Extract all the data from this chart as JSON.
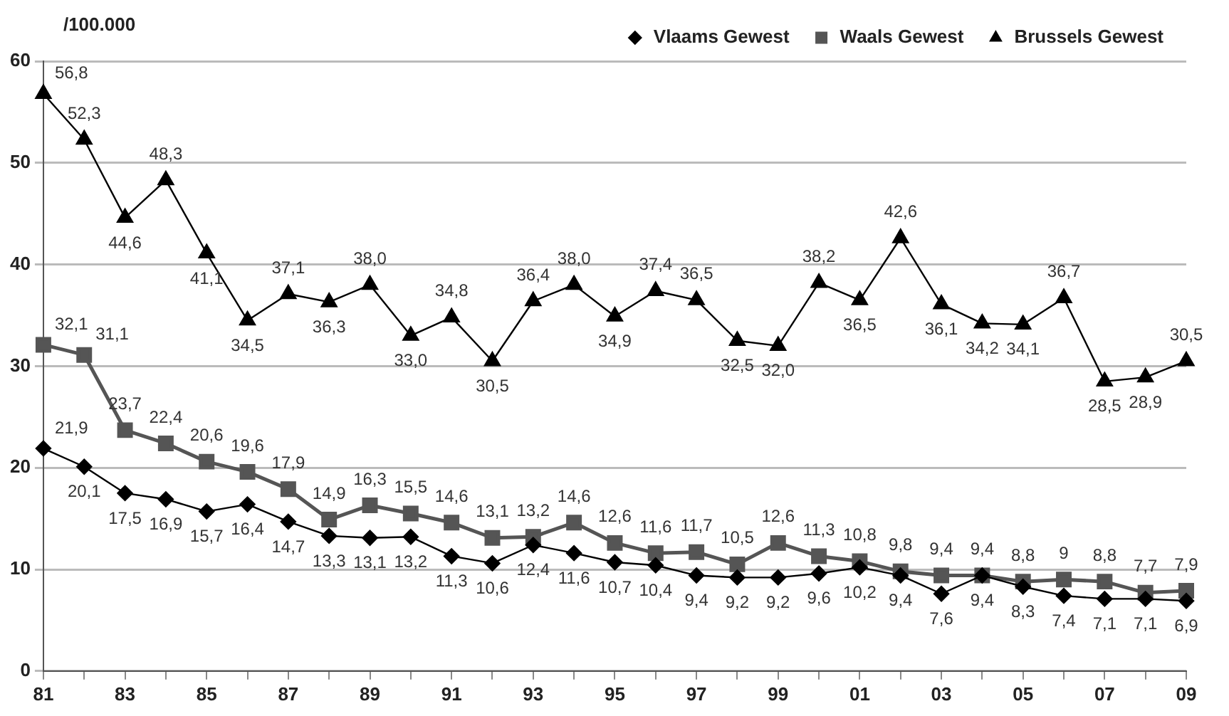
{
  "chart_data": {
    "type": "line",
    "ylabel": "/100.000",
    "categories": [
      "81",
      null,
      "83",
      null,
      "85",
      null,
      "87",
      null,
      "89",
      null,
      "91",
      null,
      "93",
      null,
      "95",
      null,
      "97",
      null,
      "99",
      null,
      "01",
      null,
      "03",
      null,
      "05",
      null,
      "07",
      null,
      "09"
    ],
    "series": [
      {
        "name": "Vlaams Gewest",
        "color": "#000000",
        "marker": "diamond",
        "values": [
          21.9,
          20.1,
          17.5,
          16.9,
          15.7,
          16.4,
          14.7,
          13.3,
          13.1,
          13.2,
          11.3,
          10.6,
          12.4,
          11.6,
          10.7,
          10.4,
          9.4,
          9.2,
          9.2,
          9.6,
          10.2,
          9.4,
          7.6,
          9.4,
          8.3,
          7.4,
          7.1,
          7.1,
          6.9
        ],
        "value_labels": [
          "21,9",
          "20,1",
          "17,5",
          "16,9",
          "15,7",
          "16,4",
          "14,7",
          "13,3",
          "13,1",
          "13,2",
          "11,3",
          "10,6",
          "12,4",
          "11,6",
          "10,7",
          "10,4",
          "9,4",
          "9,2",
          "9,2",
          "9,6",
          "10,2",
          "9,4",
          "7,6",
          "9,4",
          "8,3",
          "7,4",
          "7,1",
          "7,1",
          "6,9"
        ]
      },
      {
        "name": "Waals Gewest",
        "color": "#555555",
        "marker": "square",
        "values": [
          32.1,
          31.1,
          23.7,
          22.4,
          20.6,
          19.6,
          17.9,
          14.9,
          16.3,
          15.5,
          14.6,
          13.1,
          13.2,
          14.6,
          12.6,
          11.6,
          11.7,
          10.5,
          12.6,
          11.3,
          10.8,
          9.8,
          9.4,
          9.4,
          8.8,
          9,
          8.8,
          7.7,
          7.9
        ],
        "value_labels": [
          "32,1",
          "31,1",
          "23,7",
          "22,4",
          "20,6",
          "19,6",
          "17,9",
          "14,9",
          "16,3",
          "15,5",
          "14,6",
          "13,1",
          "13,2",
          "14,6",
          "12,6",
          "11,6",
          "11,7",
          "10,5",
          "12,6",
          "11,3",
          "10,8",
          "9,8",
          "9,4",
          "9,4",
          "8,8",
          "9",
          "8,8",
          "7,7",
          "7,9"
        ]
      },
      {
        "name": "Brussels Gewest",
        "color": "#000000",
        "marker": "triangle",
        "values": [
          56.8,
          52.3,
          44.6,
          48.3,
          41.1,
          34.5,
          37.1,
          36.3,
          38.0,
          33.0,
          34.8,
          30.5,
          36.4,
          38.0,
          34.9,
          37.4,
          36.5,
          32.5,
          32.0,
          38.2,
          36.5,
          42.6,
          36.1,
          34.2,
          34.1,
          36.7,
          28.5,
          28.9,
          30.5
        ],
        "value_labels": [
          "56,8",
          "52,3",
          "44,6",
          "48,3",
          "41,1",
          "34,5",
          "37,1",
          "36,3",
          "38,0",
          "33,0",
          "34,8",
          "30,5",
          "36,4",
          "38,0",
          "34,9",
          "37,4",
          "36,5",
          "32,5",
          "32,0",
          "38,2",
          "36,5",
          "42,6",
          "36,1",
          "34,2",
          "34,1",
          "36,7",
          "28,5",
          "28,9",
          "30,5"
        ]
      }
    ],
    "ylim": [
      0,
      60
    ],
    "yticks": [
      0,
      10,
      20,
      30,
      40,
      50,
      60
    ],
    "grid": "y",
    "legend": "top right"
  }
}
